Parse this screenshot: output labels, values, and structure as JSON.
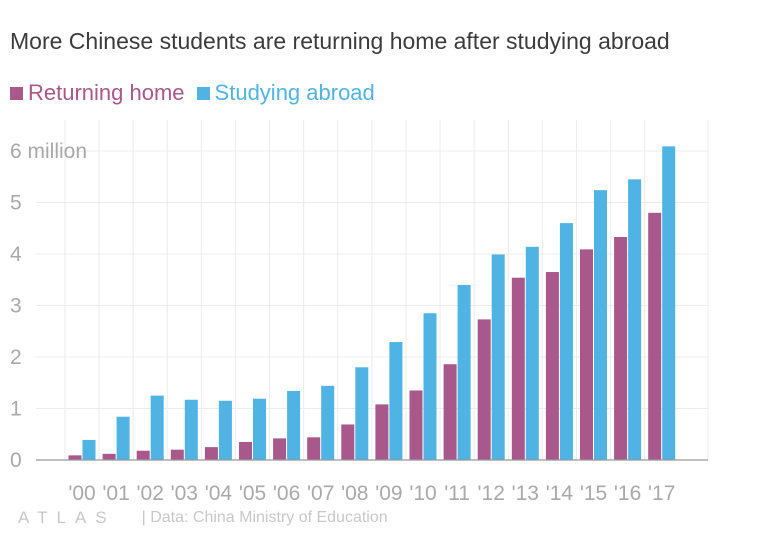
{
  "title": "More Chinese students are returning home after studying abroad",
  "footer": {
    "logo": "ATLAS",
    "source": "| Data: China Ministry of Education"
  },
  "colors": {
    "returning": "#a8588b",
    "abroad": "#4fb3e3",
    "grid": "#ececec",
    "axis": "#999999",
    "tick_text": "#a9a9a9"
  },
  "chart_data": {
    "type": "bar",
    "title": "More Chinese students are returning home after studying abroad",
    "xlabel": "",
    "ylabel": "",
    "categories": [
      "'00",
      "'01",
      "'02",
      "'03",
      "'04",
      "'05",
      "'06",
      "'07",
      "'08",
      "'09",
      "'10",
      "'11",
      "'12",
      "'13",
      "'14",
      "'15",
      "'16",
      "'17"
    ],
    "series": [
      {
        "name": "Returning home",
        "color": "#a8588b",
        "values": [
          0.09,
          0.12,
          0.18,
          0.2,
          0.25,
          0.35,
          0.42,
          0.44,
          0.69,
          1.08,
          1.35,
          1.86,
          2.73,
          3.54,
          3.65,
          4.09,
          4.33,
          4.8
        ]
      },
      {
        "name": "Studying abroad",
        "color": "#4fb3e3",
        "values": [
          0.39,
          0.84,
          1.25,
          1.17,
          1.15,
          1.19,
          1.34,
          1.44,
          1.8,
          2.29,
          2.85,
          3.4,
          3.99,
          4.14,
          4.6,
          5.24,
          5.45,
          6.09
        ]
      }
    ],
    "yticks": [
      "0",
      "1",
      "2",
      "3",
      "4",
      "5",
      "6 million"
    ],
    "ylim": [
      0,
      6.5
    ],
    "grid": true,
    "legend": "top-left"
  }
}
